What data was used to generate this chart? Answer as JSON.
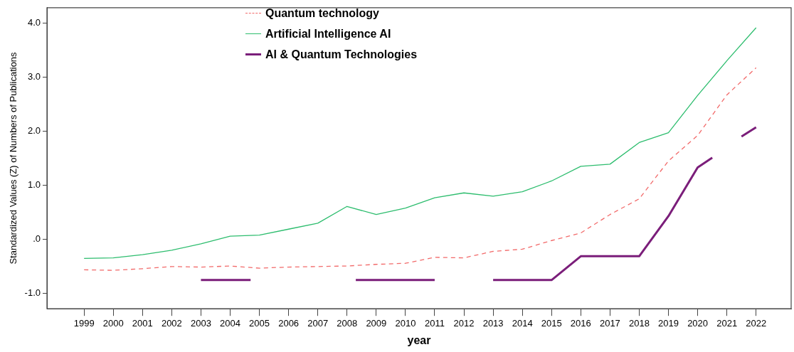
{
  "chart_data": {
    "type": "line",
    "xlabel": "year",
    "ylabel": "Standardized Values (Z) of Numbers of Publications",
    "xlim": [
      1997.73,
      2023.2
    ],
    "xticks": [
      1999,
      2000,
      2001,
      2002,
      2003,
      2004,
      2005,
      2006,
      2007,
      2008,
      2009,
      2010,
      2011,
      2012,
      2013,
      2014,
      2015,
      2016,
      2017,
      2018,
      2019,
      2020,
      2021,
      2022
    ],
    "ylim": [
      -1.28,
      4.28
    ],
    "yticks": [
      {
        "value": -1,
        "label": "-1.0"
      },
      {
        "value": 0,
        "label": ".0"
      },
      {
        "value": 1,
        "label": "1.0"
      },
      {
        "value": 2,
        "label": "2.0"
      },
      {
        "value": 3,
        "label": "3.0"
      },
      {
        "value": 4,
        "label": "4.0"
      }
    ],
    "x": [
      1999,
      2000,
      2001,
      2002,
      2003,
      2004,
      2005,
      2006,
      2007,
      2008,
      2009,
      2010,
      2011,
      2012,
      2013,
      2014,
      2015,
      2016,
      2017,
      2018,
      2019,
      2020,
      2021,
      2022
    ],
    "grid": false,
    "legend": "top",
    "marker": "none",
    "series": [
      {
        "name": "Quantum technology",
        "color": "#f26a6a",
        "line_style": "dashed",
        "values": [
          -0.56,
          -0.57,
          -0.54,
          -0.5,
          -0.51,
          -0.49,
          -0.53,
          -0.51,
          -0.5,
          -0.49,
          -0.46,
          -0.44,
          -0.33,
          -0.34,
          -0.22,
          -0.18,
          -0.02,
          0.12,
          0.46,
          0.75,
          1.45,
          1.92,
          2.67,
          3.17
        ]
      },
      {
        "name": "Artificial Intelligence AI",
        "color": "#2dbd6e",
        "line_style": "solid",
        "values": [
          -0.35,
          -0.34,
          -0.28,
          -0.2,
          -0.08,
          0.06,
          0.08,
          0.19,
          0.3,
          0.61,
          0.46,
          0.58,
          0.77,
          0.86,
          0.8,
          0.88,
          1.08,
          1.35,
          1.39,
          1.79,
          1.97,
          2.66,
          3.3,
          3.91
        ]
      },
      {
        "name": "AI & Quantum Technologies",
        "color": "#7b1e7a",
        "line_style": "solid",
        "x": [
          2003,
          2004,
          2004.7,
          2006,
          2008.3,
          2009,
          2010,
          2011,
          2012,
          2013,
          2014,
          2015,
          2016,
          2017,
          2018,
          2019,
          2020,
          2020.5,
          2021,
          2021.5,
          2022
        ],
        "values": [
          -0.75,
          -0.75,
          -0.75,
          null,
          -0.75,
          -0.75,
          -0.75,
          -0.75,
          null,
          -0.75,
          -0.75,
          -0.75,
          -0.31,
          -0.31,
          -0.31,
          0.43,
          1.33,
          1.51,
          null,
          1.9,
          2.07
        ]
      }
    ]
  }
}
